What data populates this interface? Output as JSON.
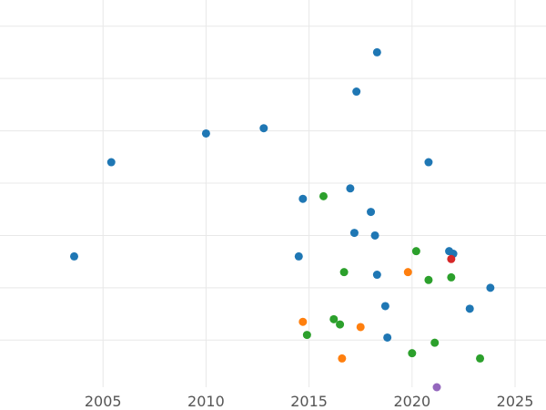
{
  "chart_data": {
    "type": "scatter",
    "title": "",
    "xlabel": "",
    "ylabel": "",
    "xlim": [
      2000.0,
      2026.5
    ],
    "ylim": [
      -0.8,
      14.0
    ],
    "grid": true,
    "x_ticks": [
      2005,
      2010,
      2015,
      2020,
      2025
    ],
    "x_tick_labels": [
      "2005",
      "2010",
      "2015",
      "2020",
      "2025"
    ],
    "y_gridlines": [
      1,
      3,
      5,
      7,
      9,
      11,
      13
    ],
    "series": [
      {
        "color": "#1f77b4",
        "points": [
          {
            "x": 2003.6,
            "y": 4.2
          },
          {
            "x": 2005.4,
            "y": 7.8
          },
          {
            "x": 2010.0,
            "y": 8.9
          },
          {
            "x": 2012.8,
            "y": 9.1
          },
          {
            "x": 2014.5,
            "y": 4.2
          },
          {
            "x": 2014.7,
            "y": 6.4
          },
          {
            "x": 2017.0,
            "y": 6.8
          },
          {
            "x": 2017.2,
            "y": 5.1
          },
          {
            "x": 2017.3,
            "y": 10.5
          },
          {
            "x": 2018.0,
            "y": 5.9
          },
          {
            "x": 2018.2,
            "y": 5.0
          },
          {
            "x": 2018.3,
            "y": 3.5
          },
          {
            "x": 2018.3,
            "y": 12.0
          },
          {
            "x": 2018.7,
            "y": 2.3
          },
          {
            "x": 2018.8,
            "y": 1.1
          },
          {
            "x": 2020.8,
            "y": 7.8
          },
          {
            "x": 2021.8,
            "y": 4.4
          },
          {
            "x": 2022.0,
            "y": 4.3
          },
          {
            "x": 2022.8,
            "y": 2.2
          },
          {
            "x": 2023.8,
            "y": 3.0
          }
        ]
      },
      {
        "color": "#2ca02c",
        "points": [
          {
            "x": 2014.9,
            "y": 1.2
          },
          {
            "x": 2015.7,
            "y": 6.5
          },
          {
            "x": 2016.2,
            "y": 1.8
          },
          {
            "x": 2016.5,
            "y": 1.6
          },
          {
            "x": 2016.7,
            "y": 3.6
          },
          {
            "x": 2020.0,
            "y": 0.5
          },
          {
            "x": 2020.2,
            "y": 4.4
          },
          {
            "x": 2020.8,
            "y": 3.3
          },
          {
            "x": 2021.1,
            "y": 0.9
          },
          {
            "x": 2021.9,
            "y": 3.4
          },
          {
            "x": 2023.3,
            "y": 0.3
          }
        ]
      },
      {
        "color": "#ff7f0e",
        "points": [
          {
            "x": 2014.7,
            "y": 1.7
          },
          {
            "x": 2016.6,
            "y": 0.3
          },
          {
            "x": 2017.5,
            "y": 1.5
          },
          {
            "x": 2019.8,
            "y": 3.6
          }
        ]
      },
      {
        "color": "#d62728",
        "points": [
          {
            "x": 2021.9,
            "y": 4.1
          }
        ]
      },
      {
        "color": "#9467bd",
        "points": [
          {
            "x": 2021.2,
            "y": -0.8
          }
        ]
      }
    ]
  }
}
